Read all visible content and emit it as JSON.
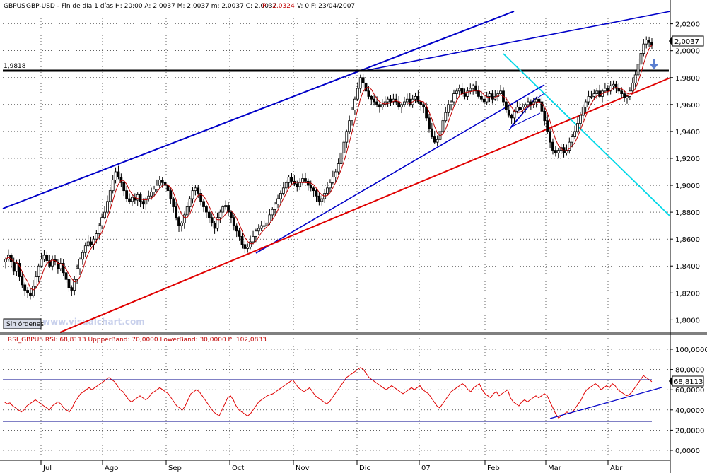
{
  "header": {
    "symbol": "GBPUS",
    "info": "GBP-USD - Fin de día 1 días  H: 20:00  A: 2,0037  M: 2,0037  m: 2,0037  C: 2,0037",
    "p_value": "P : 2,0324",
    "tail": "V: 0  F: 23/04/2007"
  },
  "rsi_header": {
    "text": "RSI_GBPUS  RSI: 68,8113  UppperBand: 70,0000  LowerBand: 30,0000  P: 102,0833"
  },
  "button": {
    "label": "Sin órdenes"
  },
  "watermark": "www.visualchart.com",
  "colors": {
    "background": "#ffffff",
    "candle": "#000000",
    "ma_line": "#c00000",
    "channel": "#0000c8",
    "support": "#e00000",
    "cyan_line": "#00d8e8",
    "rsi": "#e00000",
    "grid": "#000000"
  },
  "chart_data": [
    {
      "type": "candlestick",
      "title": "GBP-USD",
      "y_axis_ticks": [
        "2,0200",
        "2,0000",
        "1,9800",
        "1,9600",
        "1,9400",
        "1,9200",
        "1,9000",
        "1,8800",
        "1,8600",
        "1,8400",
        "1,8200",
        "1,8000"
      ],
      "last_price_label": "2,0037",
      "level_label": "1,9818",
      "x_labels": [
        "Jul",
        "Ago",
        "Sep",
        "Oct",
        "Nov",
        "Dic",
        "07",
        "Feb",
        "Mar",
        "Abr"
      ],
      "ylim": [
        1.796,
        2.024
      ],
      "closes": [
        1.845,
        1.848,
        1.843,
        1.836,
        1.842,
        1.832,
        1.826,
        1.822,
        1.82,
        1.818,
        1.825,
        1.832,
        1.84,
        1.845,
        1.848,
        1.844,
        1.84,
        1.845,
        1.843,
        1.838,
        1.842,
        1.835,
        1.83,
        1.824,
        1.822,
        1.83,
        1.838,
        1.845,
        1.85,
        1.855,
        1.858,
        1.856,
        1.86,
        1.864,
        1.87,
        1.876,
        1.88,
        1.888,
        1.896,
        1.904,
        1.91,
        1.906,
        1.902,
        1.896,
        1.89,
        1.888,
        1.891,
        1.889,
        1.893,
        1.888,
        1.886,
        1.89,
        1.892,
        1.895,
        1.897,
        1.9,
        1.904,
        1.902,
        1.9,
        1.896,
        1.89,
        1.884,
        1.876,
        1.87,
        1.872,
        1.878,
        1.884,
        1.89,
        1.896,
        1.898,
        1.894,
        1.888,
        1.884,
        1.88,
        1.876,
        1.872,
        1.868,
        1.876,
        1.88,
        1.884,
        1.885,
        1.88,
        1.876,
        1.87,
        1.866,
        1.862,
        1.856,
        1.853,
        1.854,
        1.858,
        1.862,
        1.866,
        1.868,
        1.87,
        1.87,
        1.872,
        1.878,
        1.882,
        1.886,
        1.89,
        1.894,
        1.898,
        1.902,
        1.906,
        1.903,
        1.901,
        1.899,
        1.902,
        1.905,
        1.903,
        1.9,
        1.898,
        1.896,
        1.892,
        1.888,
        1.89,
        1.894,
        1.898,
        1.902,
        1.906,
        1.91,
        1.916,
        1.924,
        1.932,
        1.94,
        1.948,
        1.956,
        1.964,
        1.972,
        1.98,
        1.976,
        1.97,
        1.966,
        1.964,
        1.962,
        1.96,
        1.958,
        1.96,
        1.962,
        1.964,
        1.962,
        1.964,
        1.962,
        1.958,
        1.96,
        1.962,
        1.964,
        1.96,
        1.964,
        1.966,
        1.962,
        1.96,
        1.958,
        1.95,
        1.942,
        1.936,
        1.932,
        1.934,
        1.94,
        1.948,
        1.954,
        1.96,
        1.962,
        1.968,
        1.97,
        1.972,
        1.968,
        1.966,
        1.97,
        1.972,
        1.974,
        1.97,
        1.966,
        1.964,
        1.962,
        1.966,
        1.968,
        1.964,
        1.966,
        1.968,
        1.97,
        1.962,
        1.956,
        1.952,
        1.95,
        1.955,
        1.958,
        1.956,
        1.958,
        1.96,
        1.962,
        1.96,
        1.962,
        1.964,
        1.962,
        1.955,
        1.948,
        1.94,
        1.932,
        1.926,
        1.924,
        1.926,
        1.928,
        1.924,
        1.926,
        1.932,
        1.936,
        1.94,
        1.946,
        1.952,
        1.958,
        1.962,
        1.966,
        1.966,
        1.968,
        1.97,
        1.966,
        1.97,
        1.972,
        1.97,
        1.974,
        1.975,
        1.972,
        1.97,
        1.968,
        1.965,
        1.966,
        1.97,
        1.976,
        1.982,
        1.99,
        1.998,
        2.005,
        2.008,
        2.006,
        2.004
      ]
    },
    {
      "type": "line",
      "title": "RSI_GBPUS",
      "y_axis_ticks": [
        "100,0000",
        "80,0000",
        "60,0000",
        "40,0000",
        "20,0000",
        "0,0000"
      ],
      "last_value_label": "68,8113",
      "ylim": [
        0,
        100
      ],
      "bands": [
        70,
        30
      ],
      "values": [
        48,
        46,
        47,
        44,
        42,
        40,
        38,
        40,
        44,
        46,
        48,
        50,
        48,
        46,
        44,
        42,
        40,
        44,
        46,
        48,
        46,
        42,
        40,
        38,
        42,
        48,
        52,
        56,
        58,
        60,
        62,
        60,
        62,
        64,
        66,
        68,
        70,
        72,
        70,
        68,
        64,
        60,
        58,
        54,
        50,
        48,
        50,
        52,
        54,
        52,
        50,
        52,
        56,
        58,
        60,
        62,
        60,
        58,
        56,
        52,
        48,
        44,
        42,
        40,
        44,
        50,
        56,
        58,
        60,
        58,
        54,
        50,
        46,
        42,
        38,
        36,
        34,
        40,
        46,
        52,
        54,
        50,
        44,
        40,
        38,
        36,
        34,
        36,
        40,
        44,
        48,
        50,
        52,
        54,
        55,
        56,
        58,
        60,
        62,
        64,
        66,
        68,
        70,
        66,
        62,
        60,
        58,
        60,
        62,
        58,
        54,
        52,
        50,
        48,
        46,
        48,
        52,
        56,
        60,
        64,
        68,
        72,
        74,
        76,
        78,
        80,
        82,
        80,
        76,
        72,
        70,
        68,
        66,
        64,
        62,
        60,
        62,
        64,
        62,
        60,
        58,
        56,
        58,
        60,
        62,
        60,
        62,
        64,
        60,
        58,
        56,
        52,
        48,
        44,
        42,
        46,
        50,
        54,
        58,
        60,
        62,
        64,
        66,
        64,
        60,
        58,
        62,
        64,
        66,
        60,
        56,
        54,
        52,
        56,
        58,
        54,
        56,
        58,
        60,
        52,
        48,
        46,
        44,
        48,
        50,
        48,
        50,
        52,
        54,
        52,
        54,
        56,
        54,
        48,
        42,
        36,
        32,
        34,
        36,
        38,
        36,
        38,
        42,
        46,
        50,
        56,
        60,
        62,
        64,
        66,
        64,
        60,
        62,
        64,
        62,
        66,
        64,
        60,
        58,
        56,
        54,
        55,
        58,
        62,
        66,
        70,
        74,
        72,
        70,
        68
      ]
    }
  ]
}
